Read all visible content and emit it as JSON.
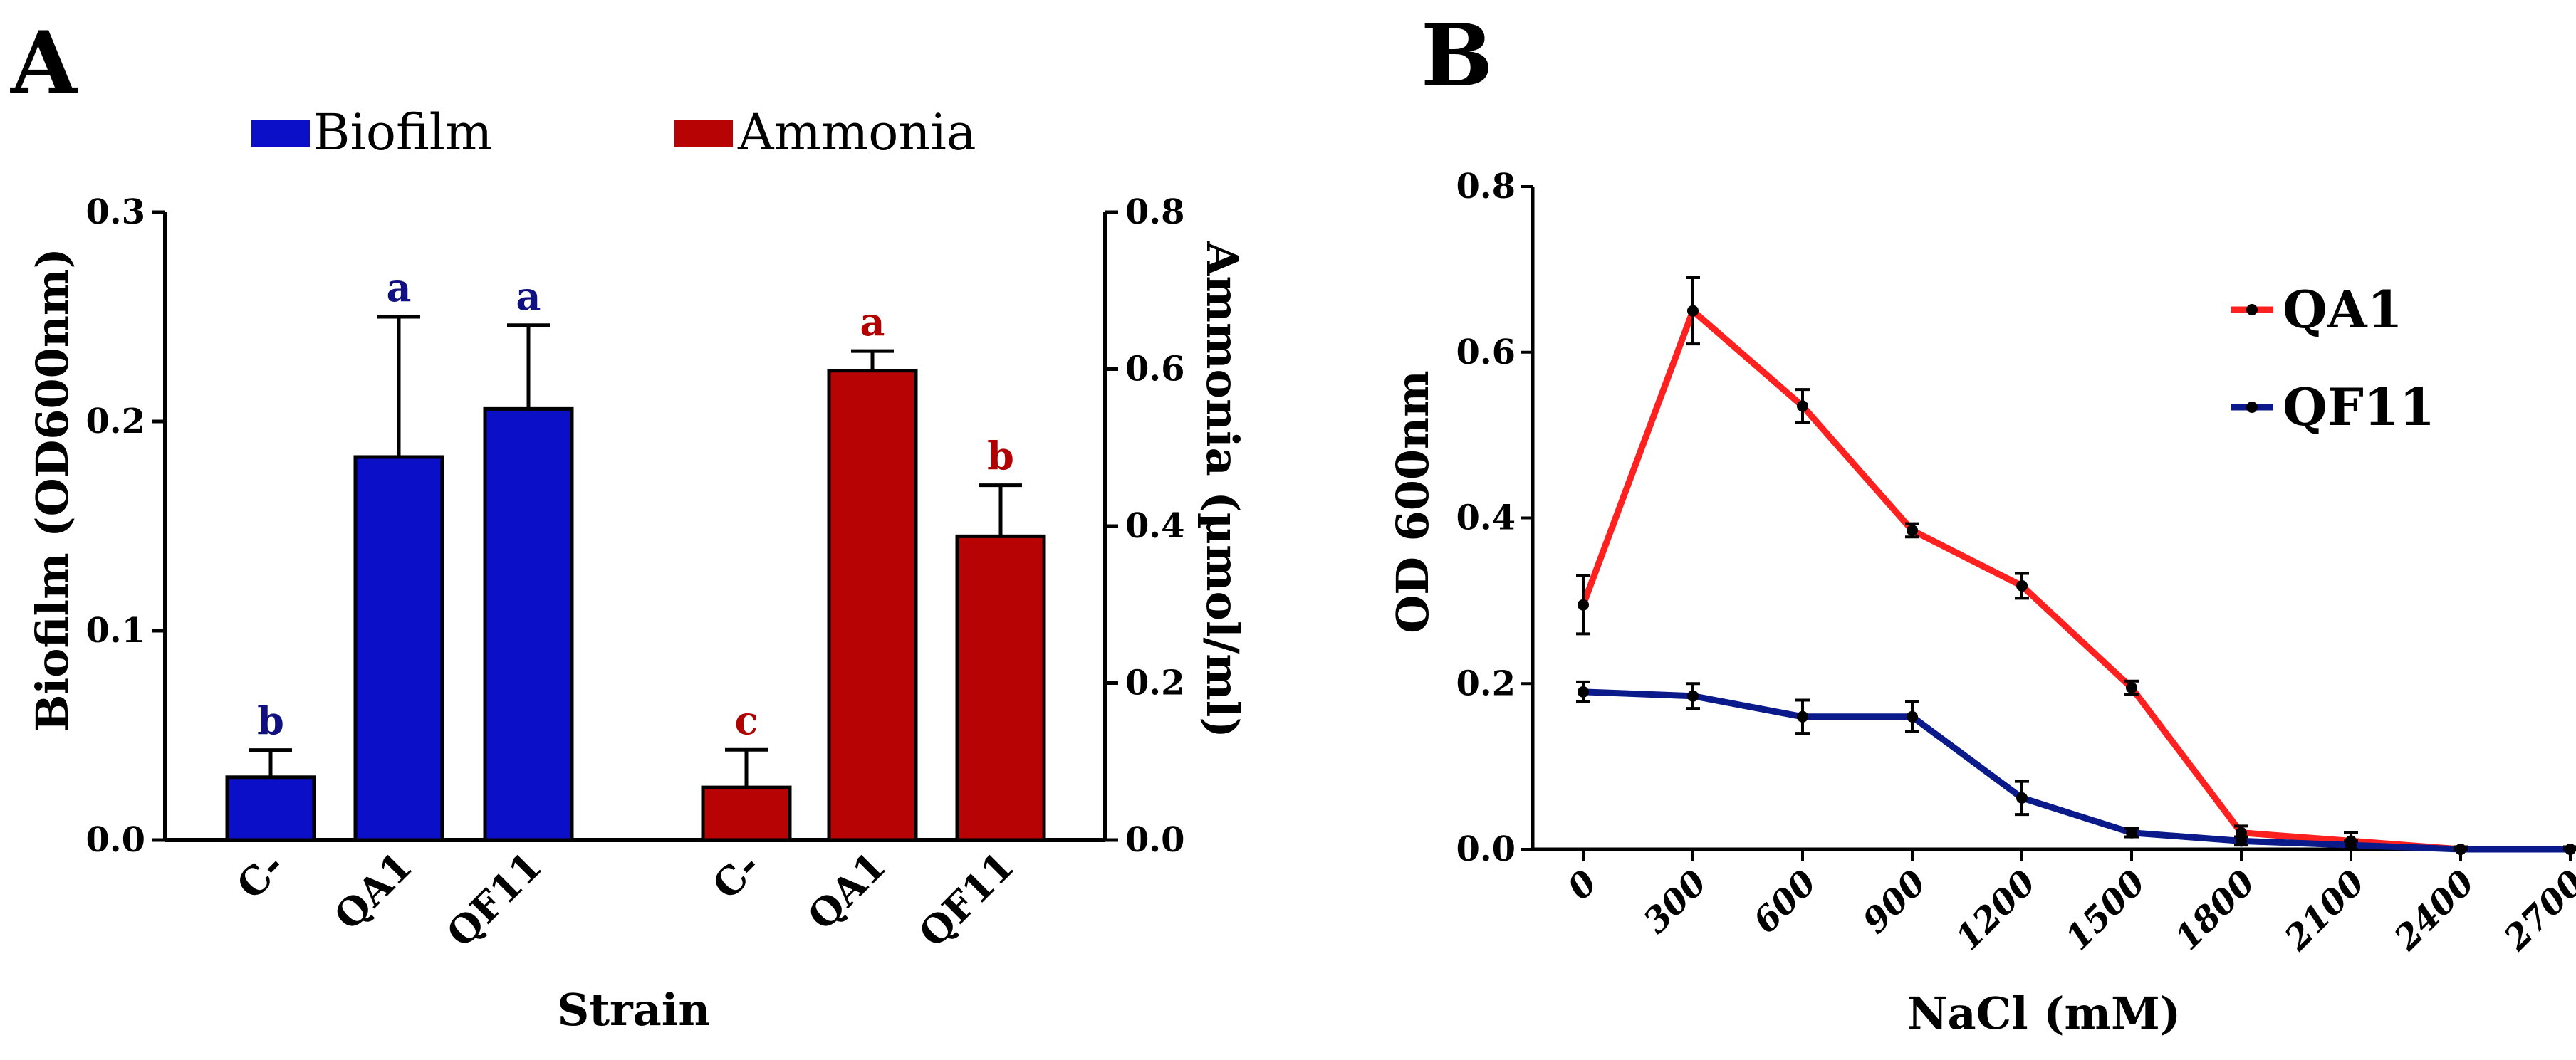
{
  "panels": {
    "a_label": "A",
    "b_label": "B"
  },
  "colors": {
    "biofilm": "#0b10c8",
    "ammonia": "#b70303",
    "qa1": "#ff2020",
    "qf11": "#0a1a8a",
    "sig_biofilm": "#101080",
    "sig_ammonia": "#b00000"
  },
  "chart_data": [
    {
      "type": "bar",
      "title": "",
      "xlabel": "Strain",
      "legend": {
        "placement": "top",
        "entries": [
          "Biofilm",
          "Ammonia"
        ]
      },
      "axes": {
        "left": {
          "label": "Biofilm (OD600nm)",
          "ylim": [
            0,
            0.3
          ],
          "ticks": [
            "0.0",
            "0.1",
            "0.2",
            "0.3"
          ]
        },
        "right": {
          "label": "Ammonia  (µmol/ml)",
          "ylim": [
            0,
            0.8
          ],
          "ticks": [
            "0.0",
            "0.2",
            "0.4",
            "0.6",
            "0.8"
          ]
        }
      },
      "series": [
        {
          "name": "Biofilm",
          "axis": "left",
          "categories": [
            "C-",
            "QA1",
            "QF11"
          ],
          "values": [
            0.03,
            0.183,
            0.206
          ],
          "errors": [
            0.013,
            0.067,
            0.04
          ],
          "letters": [
            "b",
            "a",
            "a"
          ]
        },
        {
          "name": "Ammonia",
          "axis": "right",
          "categories": [
            "C-",
            "QA1",
            "QF11"
          ],
          "values": [
            0.067,
            0.598,
            0.387
          ],
          "errors": [
            0.048,
            0.025,
            0.065
          ],
          "letters": [
            "c",
            "a",
            "b"
          ]
        }
      ],
      "grid": false
    },
    {
      "type": "line",
      "title": "",
      "xlabel": "NaCl (mM)",
      "ylabel": "OD 600nm",
      "x": [
        "0",
        "300",
        "600",
        "900",
        "1200",
        "1500",
        "1800",
        "2100",
        "2400",
        "2700"
      ],
      "ylim": [
        0,
        0.8
      ],
      "yticks": [
        "0.0",
        "0.2",
        "0.4",
        "0.6",
        "0.8"
      ],
      "legend": {
        "placement": "top-right"
      },
      "series": [
        {
          "name": "QA1",
          "values": [
            0.295,
            0.65,
            0.535,
            0.385,
            0.318,
            0.195,
            0.02,
            0.01,
            0.0,
            0.0
          ],
          "errors": [
            0.035,
            0.04,
            0.02,
            0.008,
            0.015,
            0.008,
            0.008,
            0.01,
            0.003,
            0.003
          ]
        },
        {
          "name": "QF11",
          "values": [
            0.19,
            0.185,
            0.16,
            0.16,
            0.062,
            0.02,
            0.01,
            0.005,
            0.0,
            0.0
          ],
          "errors": [
            0.012,
            0.015,
            0.02,
            0.018,
            0.02,
            0.005,
            0.005,
            0.005,
            0.003,
            0.003
          ]
        }
      ],
      "grid": false
    }
  ]
}
